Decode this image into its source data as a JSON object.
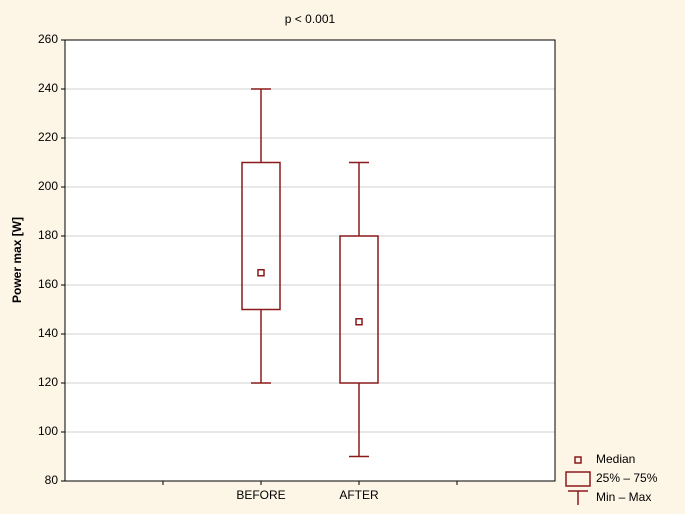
{
  "chart_data": {
    "type": "box",
    "title": "p < 0.001",
    "y_label": "Power max [W]",
    "categories": [
      "BEFORE",
      "AFTER"
    ],
    "min": [
      120,
      90
    ],
    "q1": [
      150,
      120
    ],
    "median": [
      165,
      145
    ],
    "q3": [
      210,
      180
    ],
    "max": [
      240,
      210
    ],
    "color": "#8b1a1a",
    "ylim": [
      80,
      260
    ],
    "yticks": [
      80,
      100,
      120,
      140,
      160,
      180,
      200,
      220,
      240,
      260
    ],
    "grid": true,
    "legend": {
      "position": "bottom-right",
      "median": "Median",
      "box": "25% – 75%",
      "whisker": "Min – Max"
    }
  }
}
